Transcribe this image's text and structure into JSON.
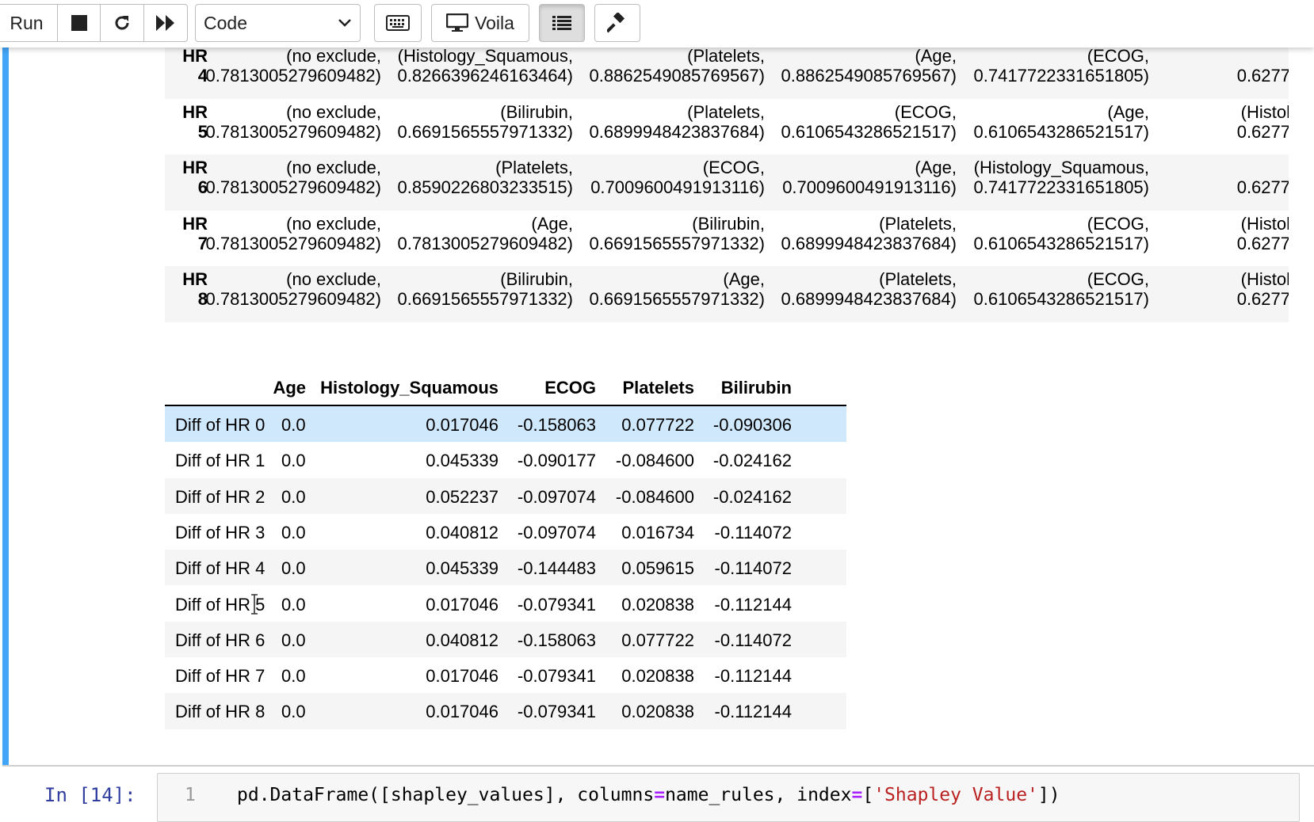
{
  "toolbar": {
    "run_label": "Run",
    "cell_type": "Code",
    "voila_label": "Voila"
  },
  "df_hr": {
    "rows": [
      {
        "index": [
          "HR",
          "4"
        ],
        "cells": [
          [
            "(no exclude,",
            "0.7813005279609482)"
          ],
          [
            "(Histology_Squamous,",
            "0.8266396246163464)"
          ],
          [
            "(Platelets,",
            "0.8862549085769567)"
          ],
          [
            "(Age,",
            "0.8862549085769567)"
          ],
          [
            "(ECOG,",
            "0.7417722331651805)"
          ],
          [
            "",
            "0.6277"
          ]
        ]
      },
      {
        "index": [
          "HR",
          "5"
        ],
        "cells": [
          [
            "(no exclude,",
            "0.7813005279609482)"
          ],
          [
            "(Bilirubin,",
            "0.6691565557971332)"
          ],
          [
            "(Platelets,",
            "0.6899948423837684)"
          ],
          [
            "(ECOG,",
            "0.6106543286521517)"
          ],
          [
            "(Age,",
            "0.6106543286521517)"
          ],
          [
            "(Histol",
            "0.6277"
          ]
        ]
      },
      {
        "index": [
          "HR",
          "6"
        ],
        "cells": [
          [
            "(no exclude,",
            "0.7813005279609482)"
          ],
          [
            "(Platelets,",
            "0.8590226803233515)"
          ],
          [
            "(ECOG,",
            "0.7009600491913116)"
          ],
          [
            "(Age,",
            "0.7009600491913116)"
          ],
          [
            "(Histology_Squamous,",
            "0.7417722331651805)"
          ],
          [
            "",
            "0.6277"
          ]
        ]
      },
      {
        "index": [
          "HR",
          "7"
        ],
        "cells": [
          [
            "(no exclude,",
            "0.7813005279609482)"
          ],
          [
            "(Age,",
            "0.7813005279609482)"
          ],
          [
            "(Bilirubin,",
            "0.6691565557971332)"
          ],
          [
            "(Platelets,",
            "0.6899948423837684)"
          ],
          [
            "(ECOG,",
            "0.6106543286521517)"
          ],
          [
            "(Histol",
            "0.6277"
          ]
        ]
      },
      {
        "index": [
          "HR",
          "8"
        ],
        "cells": [
          [
            "(no exclude,",
            "0.7813005279609482)"
          ],
          [
            "(Bilirubin,",
            "0.6691565557971332)"
          ],
          [
            "(Age,",
            "0.6691565557971332)"
          ],
          [
            "(Platelets,",
            "0.6899948423837684)"
          ],
          [
            "(ECOG,",
            "0.6106543286521517)"
          ],
          [
            "(Histol",
            "0.6277"
          ]
        ]
      }
    ]
  },
  "df_diff": {
    "columns": [
      "Age",
      "Histology_Squamous",
      "ECOG",
      "Platelets",
      "Bilirubin"
    ],
    "rows": [
      {
        "label": "Diff of HR 0",
        "values": [
          "0.0",
          "0.017046",
          "-0.158063",
          "0.077722",
          "-0.090306"
        ]
      },
      {
        "label": "Diff of HR 1",
        "values": [
          "0.0",
          "0.045339",
          "-0.090177",
          "-0.084600",
          "-0.024162"
        ]
      },
      {
        "label": "Diff of HR 2",
        "values": [
          "0.0",
          "0.052237",
          "-0.097074",
          "-0.084600",
          "-0.024162"
        ]
      },
      {
        "label": "Diff of HR 3",
        "values": [
          "0.0",
          "0.040812",
          "-0.097074",
          "0.016734",
          "-0.114072"
        ]
      },
      {
        "label": "Diff of HR 4",
        "values": [
          "0.0",
          "0.045339",
          "-0.144483",
          "0.059615",
          "-0.114072"
        ]
      },
      {
        "label": "Diff of HR 5",
        "values": [
          "0.0",
          "0.017046",
          "-0.079341",
          "0.020838",
          "-0.112144"
        ]
      },
      {
        "label": "Diff of HR 6",
        "values": [
          "0.0",
          "0.040812",
          "-0.158063",
          "0.077722",
          "-0.114072"
        ]
      },
      {
        "label": "Diff of HR 7",
        "values": [
          "0.0",
          "0.017046",
          "-0.079341",
          "0.020838",
          "-0.112144"
        ]
      },
      {
        "label": "Diff of HR 8",
        "values": [
          "0.0",
          "0.017046",
          "-0.079341",
          "0.020838",
          "-0.112144"
        ]
      }
    ]
  },
  "input_cell": {
    "prompt": "In [14]:",
    "line_number": "1",
    "code_parts": [
      "pd.DataFrame([shapley_values], columns",
      "=",
      "name_rules, index",
      "=",
      "[",
      "'Shapley Value'",
      "])"
    ]
  }
}
